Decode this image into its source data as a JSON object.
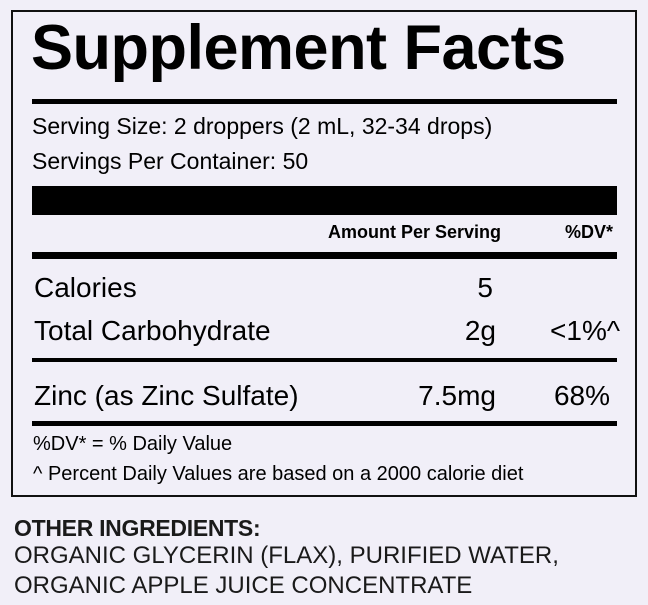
{
  "label": {
    "title": "Supplement Facts",
    "serving_size": "Serving Size: 2 droppers (2 mL, 32-34 drops)",
    "servings_per_container": "Servings Per Container: 50",
    "header": {
      "amount": "Amount Per Serving",
      "dv": "%DV*"
    },
    "rows": [
      {
        "name": "Calories",
        "amount": "5",
        "dv": ""
      },
      {
        "name": "Total Carbohydrate",
        "amount": "2g",
        "dv": "<1%^"
      },
      {
        "name": "Zinc (as Zinc Sulfate)",
        "amount": "7.5mg",
        "dv": "68%"
      }
    ],
    "footnotes": [
      "%DV* = % Daily Value",
      "^ Percent Daily Values are based on a 2000 calorie diet"
    ]
  },
  "other_ingredients": {
    "heading": "OTHER INGREDIENTS:",
    "lines": [
      "ORGANIC GLYCERIN (FLAX), PURIFIED WATER,",
      "ORGANIC APPLE JUICE CONCENTRATE"
    ]
  }
}
